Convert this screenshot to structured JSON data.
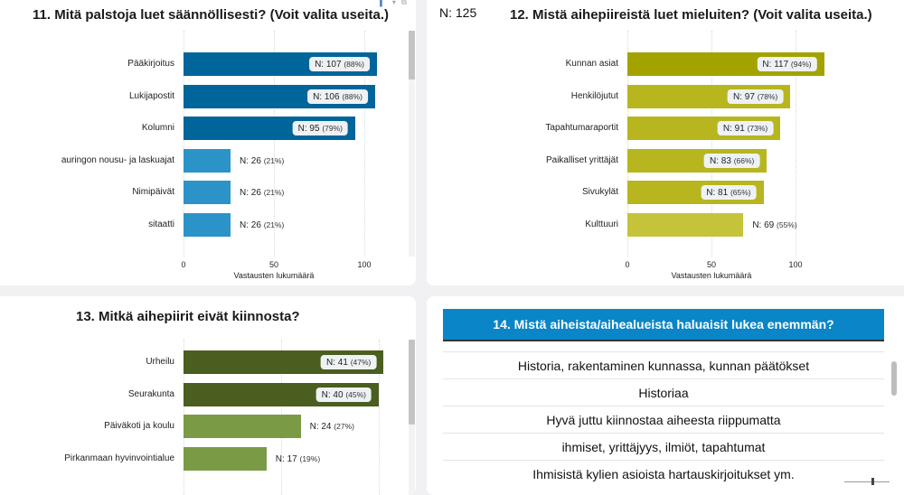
{
  "panels": {
    "q11": {
      "title": "11. Mitä palstoja luet säännöllisesti? (Voit valita useita.)",
      "toolbar_icons": [
        "info-icon",
        "filter-icon",
        "expand-icon"
      ]
    },
    "q12": {
      "title": "12. Mistä aihepiireistä luet mieluiten? (Voit valita useita.)",
      "respondents_label": "N: 125"
    },
    "q13": {
      "title": "13. Mitkä aihepiirit eivät kiinnosta?"
    },
    "q14": {
      "title": "14. Mistä aiheista/aihealueista haluaisit lukea enemmän?",
      "header_color": "#0a85c7",
      "rows": [
        "Historia, rakentaminen kunnassa, kunnan päätökset",
        "Historiaa",
        "Hyvä juttu kiinnostaa aiheesta riippumatta",
        "ihmiset, yrittäjyys, ilmiöt, tapahtumat",
        "Ihmisistä kylien asioista hartauskirjoitukset ym."
      ]
    }
  },
  "chart_data": [
    {
      "id": "q11",
      "type": "bar",
      "orientation": "horizontal",
      "title": "11. Mitä palstoja luet säännöllisesti? (Voit valita useita.)",
      "categories": [
        "Pääkirjoitus",
        "Lukijapostit",
        "Kolumni",
        "auringon nousu- ja laskuajat",
        "Nimipäivät",
        "sitaatti"
      ],
      "values": [
        107,
        106,
        95,
        26,
        26,
        26
      ],
      "percent_labels": [
        "88%",
        "88%",
        "79%",
        "21%",
        "21%",
        "21%"
      ],
      "colors": [
        "#00659a",
        "#00659a",
        "#00659a",
        "#2b93c8",
        "#2b93c8",
        "#2b93c8"
      ],
      "xlabel": "Vastausten lukumäärä",
      "xticks": [
        0,
        50,
        100
      ],
      "xlim": [
        0,
        100
      ],
      "grid": true
    },
    {
      "id": "q12",
      "type": "bar",
      "orientation": "horizontal",
      "title": "12. Mistä aihepiireistä luet mieluiten? (Voit valita useita.)",
      "categories": [
        "Kunnan asiat",
        "Henkilöjutut",
        "Tapahtumaraportit",
        "Paikalliset yrittäjät",
        "Sivukylät",
        "Kulttuuri"
      ],
      "values": [
        117,
        97,
        91,
        83,
        81,
        69
      ],
      "percent_labels": [
        "94%",
        "78%",
        "73%",
        "66%",
        "65%",
        "55%"
      ],
      "colors": [
        "#a3a300",
        "#b7b61f",
        "#b7b61f",
        "#b7b61f",
        "#b7b61f",
        "#c5c33a"
      ],
      "xlabel": "Vastausten lukumäärä",
      "xticks": [
        0,
        50,
        100
      ],
      "xlim": [
        0,
        100
      ],
      "grid": true
    },
    {
      "id": "q13",
      "type": "bar",
      "orientation": "horizontal",
      "title": "13. Mitkä aihepiirit eivät kiinnosta?",
      "categories": [
        "Urheilu",
        "Seurakunta",
        "Päiväkoti ja koulu",
        "Pirkanmaan hyvinvointialue"
      ],
      "values": [
        41,
        40,
        24,
        17
      ],
      "percent_labels": [
        "47%",
        "45%",
        "27%",
        "19%"
      ],
      "colors": [
        "#4a5e1f",
        "#4a5e1f",
        "#7a9a45",
        "#7a9a45"
      ],
      "xlim": [
        0,
        40
      ],
      "grid": true
    }
  ]
}
